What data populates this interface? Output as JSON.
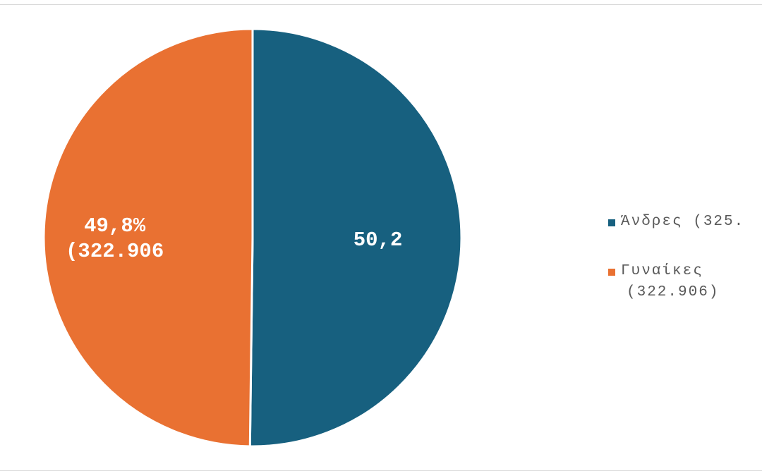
{
  "chart_data": {
    "type": "pie",
    "title": "",
    "slices": [
      {
        "name": "Άνδρες (325.",
        "value": 50.2,
        "color": "#17607F",
        "label_lines": [
          "50,2"
        ]
      },
      {
        "name": "Γυναίκες",
        "name_line2": "(322.906)",
        "value": 49.8,
        "color": "#E97132",
        "label_lines": [
          "49,8%",
          "(322.906"
        ]
      }
    ],
    "legend_position": "right",
    "start_angle_deg": 0,
    "direction": "clockwise"
  }
}
